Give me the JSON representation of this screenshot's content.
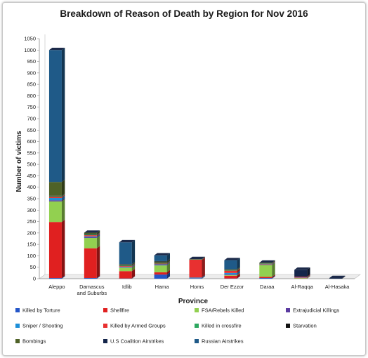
{
  "chart_data": {
    "type": "bar",
    "stacked": true,
    "title": "Breakdown of Reason of Death by Region for Nov 2016",
    "xlabel": "Province",
    "ylabel": "Number of victims",
    "ylim": [
      0,
      1050
    ],
    "yticks": [
      0,
      50,
      100,
      150,
      200,
      250,
      300,
      350,
      400,
      450,
      500,
      550,
      600,
      650,
      700,
      750,
      800,
      850,
      900,
      950,
      1000,
      1050
    ],
    "grid": false,
    "legend_position": "bottom",
    "categories": [
      "Aleppo",
      "Damascus and Suburbs",
      "Idlib",
      "Hama",
      "Homs",
      "Der Ezzor",
      "Daraa",
      "Al-Raqqa",
      "Al-Hasaka"
    ],
    "category_lines": [
      [
        "Aleppo"
      ],
      [
        "Damascus",
        "and Suburbs"
      ],
      [
        "Idlib"
      ],
      [
        "Hama"
      ],
      [
        "Homs"
      ],
      [
        "Der Ezzor"
      ],
      [
        "Daraa"
      ],
      [
        "Al-Raqqa"
      ],
      [
        "Al-Hasaka"
      ]
    ],
    "series": [
      {
        "name": "Killed by Torture",
        "color": "#2456c8",
        "values": [
          3,
          3,
          1,
          18,
          1,
          1,
          3,
          0,
          0
        ]
      },
      {
        "name": "Shellfire",
        "color": "#e02020",
        "values": [
          245,
          130,
          32,
          10,
          0,
          12,
          5,
          1,
          0
        ]
      },
      {
        "name": "FSA/Rebels Killed",
        "color": "#92d050",
        "values": [
          90,
          45,
          15,
          30,
          0,
          3,
          52,
          2,
          0
        ]
      },
      {
        "name": "Extrajudicial Killings",
        "color": "#5a3aa0",
        "values": [
          5,
          3,
          2,
          2,
          1,
          3,
          2,
          1,
          0
        ]
      },
      {
        "name": "Sniper / Shooting",
        "color": "#1e8fd8",
        "values": [
          10,
          4,
          2,
          3,
          3,
          6,
          1,
          1,
          0
        ]
      },
      {
        "name": "Killed by Armed Groups",
        "color": "#e83030",
        "values": [
          5,
          5,
          3,
          3,
          78,
          10,
          2,
          3,
          0
        ]
      },
      {
        "name": "Killed in crossfire",
        "color": "#2ea860",
        "values": [
          3,
          3,
          2,
          2,
          1,
          2,
          1,
          0,
          0
        ]
      },
      {
        "name": "Starvation",
        "color": "#121212",
        "values": [
          2,
          3,
          1,
          2,
          1,
          1,
          1,
          1,
          0
        ]
      },
      {
        "name": "Bombings",
        "color": "#4f6228",
        "values": [
          60,
          5,
          4,
          5,
          1,
          3,
          3,
          0,
          0
        ]
      },
      {
        "name": "U.S Coalition Airstrikes",
        "color": "#14254a",
        "values": [
          0,
          0,
          2,
          2,
          0,
          0,
          0,
          30,
          3
        ]
      },
      {
        "name": "Russian Airstrikes",
        "color": "#1f5a88",
        "values": [
          577,
          0,
          95,
          25,
          0,
          40,
          0,
          0,
          0
        ]
      }
    ]
  }
}
